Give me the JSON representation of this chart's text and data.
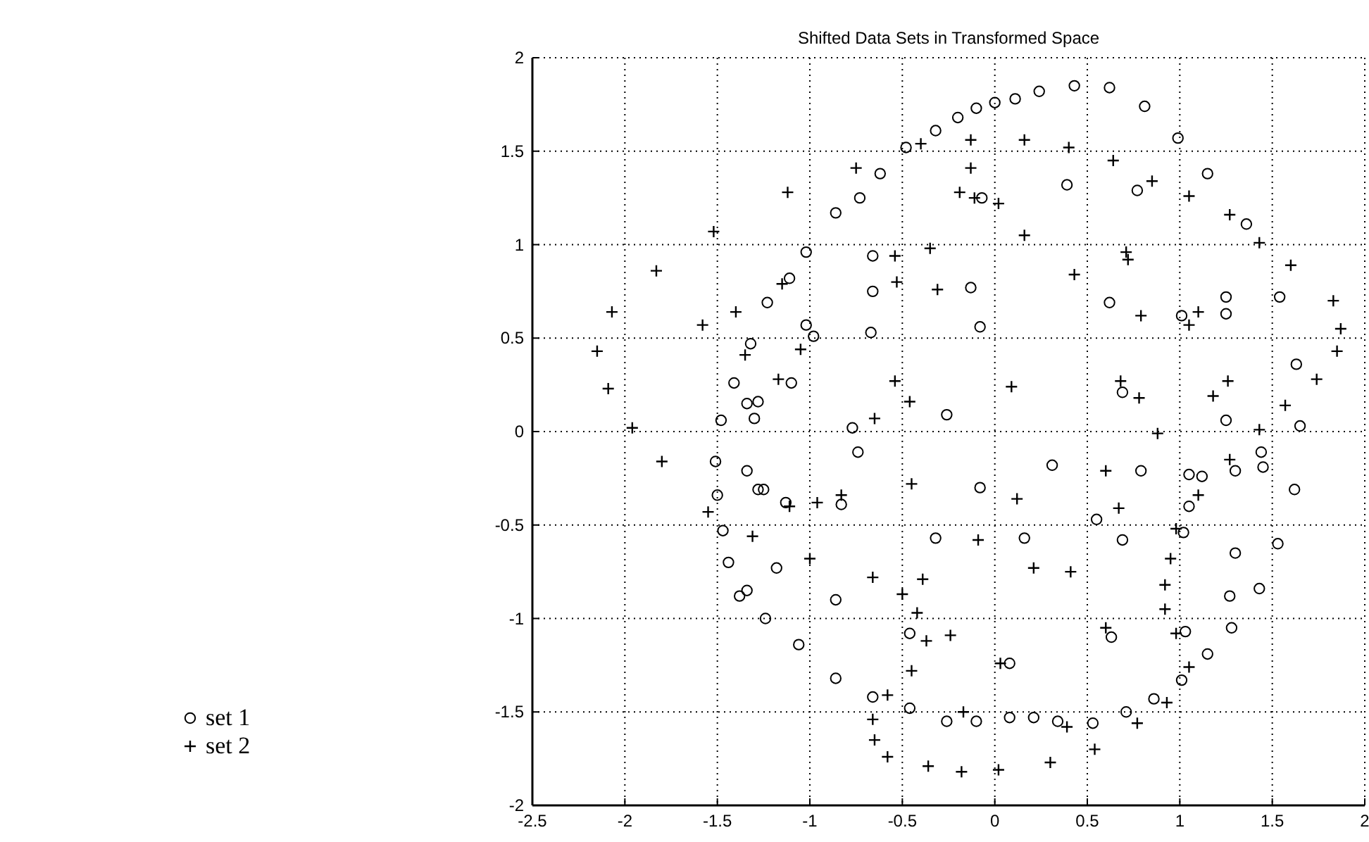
{
  "chart_data": {
    "type": "scatter",
    "title": "Shifted Data Sets in Transformed Space",
    "xlim": [
      -2.5,
      2
    ],
    "xticks": [
      -2.5,
      -2,
      -1.5,
      -1,
      -0.5,
      0,
      0.5,
      1,
      1.5,
      2
    ],
    "ylim": [
      -2,
      2
    ],
    "yticks": [
      -2,
      -1.5,
      -1,
      -0.5,
      0,
      0.5,
      1,
      1.5,
      2
    ],
    "grid": true,
    "legend": "left",
    "series": [
      {
        "name": "set 1",
        "color": "#000000",
        "marker": "circle",
        "x": [
          -0.48,
          -0.62,
          -0.73,
          -0.86,
          -1.02,
          -0.66,
          -1.11,
          -0.66,
          -1.23,
          -1.02,
          -0.98,
          -0.67,
          -1.32,
          -1.1,
          -1.41,
          -1.34,
          -1.28,
          -1.3,
          -1.48,
          -0.77,
          -0.32,
          -0.2,
          -0.1,
          0.0,
          0.11,
          0.24,
          0.43,
          0.62,
          0.81,
          0.99,
          0.39,
          0.77,
          1.15,
          -0.07,
          1.36,
          -0.13,
          0.62,
          1.01,
          1.25,
          1.25,
          1.54,
          -0.08,
          1.63,
          -0.26,
          0.69,
          1.25,
          1.65,
          -1.51,
          -1.34,
          -0.74,
          -1.5,
          -1.28,
          -1.25,
          -1.13,
          -0.83,
          -1.47,
          -1.44,
          -1.18,
          -1.38,
          -1.34,
          -0.86,
          -1.24,
          -1.06,
          -0.86,
          -0.66,
          0.31,
          0.79,
          1.05,
          1.12,
          1.3,
          1.44,
          1.45,
          1.62,
          1.05,
          -0.08,
          0.55,
          1.02,
          -0.32,
          0.16,
          0.69,
          1.3,
          1.53,
          1.43,
          1.27,
          1.28,
          -0.46,
          0.63,
          1.03,
          1.15,
          1.01,
          0.08,
          -0.46,
          -0.26,
          -0.1,
          0.08,
          0.21,
          0.34,
          0.53,
          0.71,
          0.86
        ],
        "values": [
          1.52,
          1.38,
          1.25,
          1.17,
          0.96,
          0.94,
          0.82,
          0.75,
          0.69,
          0.57,
          0.51,
          0.53,
          0.47,
          0.26,
          0.26,
          0.15,
          0.16,
          0.07,
          0.06,
          0.02,
          1.61,
          1.68,
          1.73,
          1.76,
          1.78,
          1.82,
          1.85,
          1.84,
          1.74,
          1.57,
          1.32,
          1.29,
          1.38,
          1.25,
          1.11,
          0.77,
          0.69,
          0.62,
          0.72,
          0.63,
          0.72,
          0.56,
          0.36,
          0.09,
          0.21,
          0.06,
          0.03,
          -0.16,
          -0.21,
          -0.11,
          -0.34,
          -0.31,
          -0.31,
          -0.38,
          -0.39,
          -0.53,
          -0.7,
          -0.73,
          -0.88,
          -0.85,
          -0.9,
          -1.0,
          -1.14,
          -1.32,
          -1.42,
          -0.18,
          -0.21,
          -0.23,
          -0.24,
          -0.21,
          -0.11,
          -0.19,
          -0.31,
          -0.4,
          -0.3,
          -0.47,
          -0.54,
          -0.57,
          -0.57,
          -0.58,
          -0.65,
          -0.6,
          -0.84,
          -0.88,
          -1.05,
          -1.08,
          -1.1,
          -1.07,
          -1.19,
          -1.33,
          -1.24,
          -1.48,
          -1.55,
          -1.55,
          -1.53,
          -1.53,
          -1.55,
          -1.56,
          -1.5,
          -1.43
        ]
      },
      {
        "name": "set 2",
        "color": "#000000",
        "marker": "cross",
        "x": [
          -0.75,
          -1.12,
          -1.52,
          -0.54,
          -1.83,
          -1.15,
          -0.53,
          -2.07,
          -1.4,
          -1.58,
          -1.35,
          -2.15,
          -1.05,
          -2.09,
          -1.17,
          -0.54,
          -0.46,
          -1.96,
          -0.65,
          -0.4,
          -0.13,
          0.16,
          0.4,
          -0.13,
          0.64,
          0.85,
          1.05,
          -0.19,
          -0.11,
          0.02,
          1.27,
          1.43,
          0.16,
          -0.35,
          0.71,
          0.72,
          1.6,
          0.43,
          -0.31,
          0.79,
          1.05,
          1.1,
          1.83,
          1.87,
          1.85,
          1.74,
          0.09,
          0.68,
          0.78,
          1.18,
          1.26,
          1.57,
          1.43,
          0.88,
          -1.8,
          -1.55,
          -1.11,
          -0.96,
          -0.83,
          -0.45,
          -1.31,
          -1.0,
          -0.66,
          -0.5,
          -0.58,
          -0.66,
          -0.65,
          -0.58,
          0.6,
          1.27,
          1.1,
          0.12,
          0.67,
          0.98,
          -0.09,
          0.95,
          0.21,
          0.41,
          -0.39,
          0.92,
          0.92,
          -0.42,
          -0.37,
          -0.24,
          0.6,
          0.98,
          1.05,
          -0.45,
          0.03,
          -0.17,
          0.39,
          0.77,
          0.93,
          0.54,
          -0.36,
          -0.18,
          0.02,
          0.3
        ],
        "values": [
          1.41,
          1.28,
          1.07,
          0.94,
          0.86,
          0.79,
          0.8,
          0.64,
          0.64,
          0.57,
          0.41,
          0.43,
          0.44,
          0.23,
          0.28,
          0.27,
          0.16,
          0.02,
          0.07,
          1.54,
          1.56,
          1.56,
          1.52,
          1.41,
          1.45,
          1.34,
          1.26,
          1.28,
          1.25,
          1.22,
          1.16,
          1.01,
          1.05,
          0.98,
          0.96,
          0.92,
          0.89,
          0.84,
          0.76,
          0.62,
          0.57,
          0.64,
          0.7,
          0.55,
          0.43,
          0.28,
          0.24,
          0.27,
          0.18,
          0.19,
          0.27,
          0.14,
          0.01,
          -0.01,
          -0.16,
          -0.43,
          -0.4,
          -0.38,
          -0.34,
          -0.28,
          -0.56,
          -0.68,
          -0.78,
          -0.87,
          -1.41,
          -1.54,
          -1.65,
          -1.74,
          -0.21,
          -0.15,
          -0.34,
          -0.36,
          -0.41,
          -0.52,
          -0.58,
          -0.68,
          -0.73,
          -0.75,
          -0.79,
          -0.82,
          -0.95,
          -0.97,
          -1.12,
          -1.09,
          -1.05,
          -1.08,
          -1.26,
          -1.28,
          -1.24,
          -1.5,
          -1.58,
          -1.56,
          -1.45,
          -1.7,
          -1.79,
          -1.82,
          -1.81,
          -1.77
        ]
      }
    ]
  }
}
